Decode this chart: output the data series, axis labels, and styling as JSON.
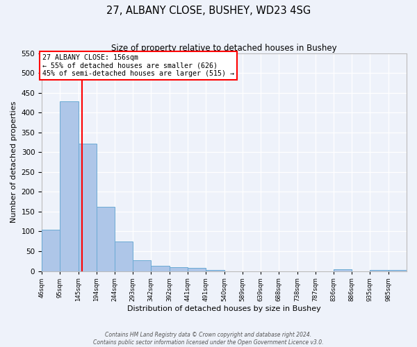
{
  "title": "27, ALBANY CLOSE, BUSHEY, WD23 4SG",
  "subtitle": "Size of property relative to detached houses in Bushey",
  "bar_heights": [
    105,
    428,
    322,
    163,
    75,
    27,
    13,
    10,
    8,
    2,
    0,
    0,
    0,
    0,
    0,
    0,
    4,
    0,
    2,
    2
  ],
  "bin_edges": [
    46,
    95,
    145,
    194,
    244,
    293,
    342,
    392,
    441,
    491,
    540,
    589,
    639,
    688,
    738,
    787,
    836,
    886,
    935,
    985,
    1034
  ],
  "bar_color": "#aec6e8",
  "bar_edgecolor": "#6aaad4",
  "property_line_x": 156,
  "property_line_color": "red",
  "annotation_title": "27 ALBANY CLOSE: 156sqm",
  "annotation_line1": "← 55% of detached houses are smaller (626)",
  "annotation_line2": "45% of semi-detached houses are larger (515) →",
  "ylabel": "Number of detached properties",
  "xlabel": "Distribution of detached houses by size in Bushey",
  "ylim": [
    0,
    550
  ],
  "yticks": [
    0,
    50,
    100,
    150,
    200,
    250,
    300,
    350,
    400,
    450,
    500,
    550
  ],
  "footer_line1": "Contains HM Land Registry data © Crown copyright and database right 2024.",
  "footer_line2": "Contains public sector information licensed under the Open Government Licence v3.0.",
  "bg_color": "#eef2fa",
  "grid_color": "#ffffff"
}
